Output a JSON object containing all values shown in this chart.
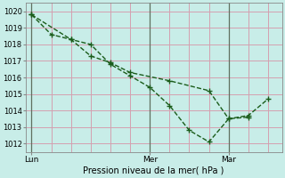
{
  "line1_x": [
    0,
    1,
    2,
    3,
    4,
    5,
    6,
    7,
    8,
    9,
    10,
    11
  ],
  "line1_y": [
    1019.8,
    1018.6,
    1018.3,
    1018.0,
    1016.8,
    1016.1,
    1015.4,
    1014.3,
    1012.8,
    1012.1,
    1013.5,
    1013.6
  ],
  "line2_x": [
    0,
    2,
    3,
    4,
    5,
    7,
    9,
    10,
    11,
    12
  ],
  "line2_y": [
    1019.8,
    1018.3,
    1017.3,
    1016.9,
    1016.3,
    1015.8,
    1015.2,
    1013.5,
    1013.7,
    1014.7
  ],
  "x_tick_positions": [
    0,
    6,
    10
  ],
  "x_tick_labels": [
    "Lun",
    "Mer",
    "Mar"
  ],
  "x_vline_positions": [
    0,
    6,
    10
  ],
  "xlim": [
    -0.3,
    12.7
  ],
  "ylim": [
    1011.5,
    1020.5
  ],
  "yticks": [
    1012,
    1013,
    1014,
    1015,
    1016,
    1017,
    1018,
    1019,
    1020
  ],
  "xlabel": "Pression niveau de la mer( hPa )",
  "line_color": "#1a5c1a",
  "bg_color": "#c8ede8",
  "grid_color_h": "#d4a0b0",
  "grid_color_v": "#d4a0b0",
  "vline_color": "#607060",
  "figsize": [
    3.2,
    2.0
  ],
  "dpi": 100
}
